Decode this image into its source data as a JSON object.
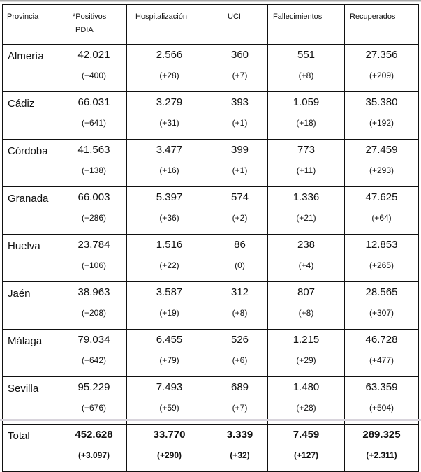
{
  "headers": [
    "Provincia",
    "*Positivos PDIA",
    "Hospitalización",
    "UCI",
    "Fallecimientos",
    "Recuperados"
  ],
  "header_positivos": [
    "*Positivos",
    "PDIA"
  ],
  "rows": [
    {
      "provincia": "Almería",
      "values": [
        "42.021",
        "2.566",
        "360",
        "551",
        "27.356"
      ],
      "deltas": [
        "(+400)",
        "(+28)",
        "(+7)",
        "(+8)",
        "(+209)"
      ]
    },
    {
      "provincia": "Cádiz",
      "values": [
        "66.031",
        "3.279",
        "393",
        "1.059",
        "35.380"
      ],
      "deltas": [
        "(+641)",
        "(+31)",
        "(+1)",
        "(+18)",
        "(+192)"
      ]
    },
    {
      "provincia": "Córdoba",
      "values": [
        "41.563",
        "3.477",
        "399",
        "773",
        "27.459"
      ],
      "deltas": [
        "(+138)",
        "(+16)",
        "(+1)",
        "(+11)",
        "(+293)"
      ]
    },
    {
      "provincia": "Granada",
      "values": [
        "66.003",
        "5.397",
        "574",
        "1.336",
        "47.625"
      ],
      "deltas": [
        "(+286)",
        "(+36)",
        "(+2)",
        "(+21)",
        "(+64)"
      ]
    },
    {
      "provincia": "Huelva",
      "values": [
        "23.784",
        "1.516",
        "86",
        "238",
        "12.853"
      ],
      "deltas": [
        "(+106)",
        "(+22)",
        "(0)",
        "(+4)",
        "(+265)"
      ]
    },
    {
      "provincia": "Jaén",
      "values": [
        "38.963",
        "3.587",
        "312",
        "807",
        "28.565"
      ],
      "deltas": [
        "(+208)",
        "(+19)",
        "(+8)",
        "(+8)",
        "(+307)"
      ]
    },
    {
      "provincia": "Málaga",
      "values": [
        "79.034",
        "6.455",
        "526",
        "1.215",
        "46.728"
      ],
      "deltas": [
        "(+642)",
        "(+79)",
        "(+6)",
        "(+29)",
        "(+477)"
      ]
    },
    {
      "provincia": "Sevilla",
      "values": [
        "95.229",
        "7.493",
        "689",
        "1.480",
        "63.359"
      ],
      "deltas": [
        "(+676)",
        "(+59)",
        "(+7)",
        "(+28)",
        "(+504)"
      ]
    }
  ],
  "total": {
    "provincia": "Total",
    "values": [
      "452.628",
      "33.770",
      "3.339",
      "7.459",
      "289.325"
    ],
    "deltas": [
      "(+3.097)",
      "(+290)",
      "(+32)",
      "(+127)",
      "(+2.311)"
    ]
  }
}
